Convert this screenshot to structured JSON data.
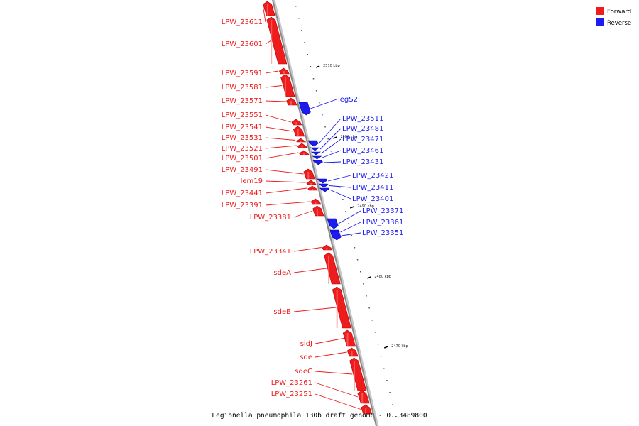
{
  "colors": {
    "forward": "#ee1c1c",
    "forward_dark": "#b80000",
    "reverse": "#1c1cee",
    "reverse_dark": "#0000aa",
    "backbone": "#8a8a8a"
  },
  "legend": {
    "forward_label": "Forward",
    "reverse_label": "Reverse"
  },
  "caption": "Legionella pneumophila 130b draft genome - 0..3489800",
  "ticks": [
    "2510 kbp",
    "2500 kbp",
    "2490 kbp",
    "2480 kbp",
    "2470 kbp"
  ],
  "forward_genes": [
    "LPW_23611",
    "LPW_23601",
    "LPW_23591",
    "LPW_23581",
    "LPW_23571",
    "LPW_23551",
    "LPW_23541",
    "LPW_23531",
    "LPW_23521",
    "LPW_23501",
    "LPW_23491",
    "lem19",
    "LPW_23441",
    "LPW_23391",
    "LPW_23381",
    "LPW_23341",
    "sdeA",
    "sdeB",
    "sidJ",
    "sde",
    "sdeC",
    "LPW_23261",
    "LPW_23251"
  ],
  "reverse_genes": [
    "legS2",
    "LPW_23511",
    "LPW_23481",
    "LPW_23471",
    "LPW_23461",
    "LPW_23431",
    "LPW_23421",
    "LPW_23411",
    "LPW_23401",
    "LPW_23371",
    "LPW_23361",
    "LPW_23351"
  ]
}
